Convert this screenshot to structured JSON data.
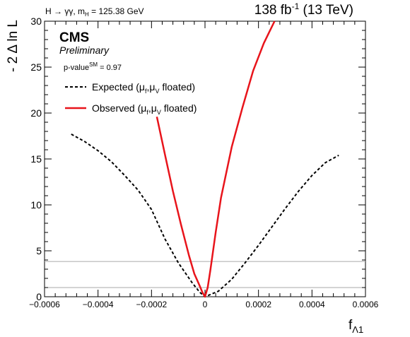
{
  "header": {
    "process": "H → γγ, m",
    "process_sub": "H",
    "process_mass": " = 125.38 GeV",
    "lumi_value": "138 fb",
    "lumi_exp": "-1",
    "lumi_energy": " (13 TeV)"
  },
  "labels": {
    "experiment": "CMS",
    "status": "Preliminary",
    "pvalue_prefix": "p-value",
    "pvalue_sup": "SM",
    "pvalue_value": " = 0.97"
  },
  "axes": {
    "ylabel": "- 2 Δ ln L",
    "xlabel_main": "f",
    "xlabel_sub": "Λ1"
  },
  "legend": {
    "expected_prefix": "Expected (μ",
    "expected_sub1": "f",
    "expected_mid": ",μ",
    "expected_sub2": "V",
    "expected_suffix": " floated)",
    "observed_prefix": "Observed (μ",
    "observed_sub1": "f",
    "observed_mid": ",μ",
    "observed_sub2": "V",
    "observed_suffix": " floated)"
  },
  "colors": {
    "observed": "#e8141b",
    "expected": "#000000",
    "threshold": "#aaaaaa"
  },
  "chart_data": {
    "type": "line",
    "xlim": [
      -0.0006,
      0.0006
    ],
    "ylim": [
      0,
      30
    ],
    "x_ticks": [
      {
        "value": -0.0006,
        "label": "−0.0006"
      },
      {
        "value": -0.0004,
        "label": "−0.0004"
      },
      {
        "value": -0.0002,
        "label": "−0.0002"
      },
      {
        "value": 0,
        "label": "0"
      },
      {
        "value": 0.0002,
        "label": "0.0002"
      },
      {
        "value": 0.0004,
        "label": "0.0004"
      },
      {
        "value": 0.0006,
        "label": "0.0006"
      }
    ],
    "y_ticks": [
      {
        "value": 0,
        "label": "0"
      },
      {
        "value": 5,
        "label": "5"
      },
      {
        "value": 10,
        "label": "10"
      },
      {
        "value": 15,
        "label": "15"
      },
      {
        "value": 20,
        "label": "20"
      },
      {
        "value": 25,
        "label": "25"
      },
      {
        "value": 30,
        "label": "30"
      }
    ],
    "threshold_lines": [
      1.0,
      3.84
    ],
    "series": [
      {
        "name": "Expected",
        "style": "dashed",
        "x": [
          -0.0005,
          -0.00045,
          -0.0004,
          -0.00035,
          -0.0003,
          -0.00025,
          -0.0002,
          -0.00015,
          -0.0001,
          -5e-05,
          -2e-05,
          0,
          5e-05,
          0.0001,
          0.00015,
          0.0002,
          0.00025,
          0.0003,
          0.00035,
          0.0004,
          0.00045,
          0.0005
        ],
        "y": [
          17.7,
          16.9,
          15.9,
          14.7,
          13.2,
          11.6,
          9.5,
          6.3,
          3.7,
          1.6,
          0.5,
          0,
          0.6,
          1.9,
          3.7,
          5.6,
          7.6,
          9.6,
          11.5,
          13.2,
          14.6,
          15.4
        ]
      },
      {
        "name": "Observed",
        "style": "solid",
        "x": [
          -0.00018,
          -0.00015,
          -0.00012,
          -9e-05,
          -6e-05,
          -4e-05,
          -2e-05,
          -1e-05,
          0,
          1e-05,
          2e-05,
          4e-05,
          6e-05,
          0.0001,
          0.00014,
          0.00018,
          0.00022,
          0.00026
        ],
        "y": [
          19.6,
          15.5,
          11.5,
          7.9,
          4.5,
          2.5,
          1.2,
          0.5,
          0,
          1.0,
          2.9,
          7.0,
          10.8,
          16.3,
          20.6,
          24.6,
          27.6,
          30
        ]
      }
    ]
  }
}
